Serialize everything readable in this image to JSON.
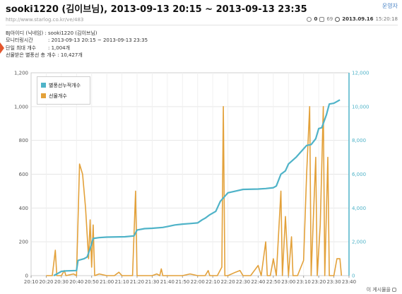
{
  "header": {
    "title": "sooki1220 (김이브님), 2013-09-13 20:15 ~ 2013-09-13 23:35",
    "top_link": "운영자",
    "url": "http://www.starlog.co.kr/ve/483",
    "comments": "0",
    "views": "69",
    "date": "2013.09.16",
    "time": "15:20:18"
  },
  "info": [
    {
      "key": "BJ아이디 (닉네임)",
      "value": ": sooki1220 (김이브님)"
    },
    {
      "key": "모니터링시간",
      "value": ": 2013-09-13 20:15 ~ 2013-09-13 23:35"
    },
    {
      "key": "단일 최대 개수",
      "value": ": 1,004개"
    },
    {
      "key": "선물받은 별풍선 총 개수",
      "value": ": 10,427개"
    }
  ],
  "footer": {
    "link": "이 게시물을"
  },
  "chart_data": {
    "type": "line",
    "title": "",
    "xlabel": "",
    "ylabel": "",
    "x_ticks": [
      "20:10",
      "20:20",
      "20:30",
      "20:40",
      "20:50",
      "21:00",
      "21:10",
      "21:20",
      "21:30",
      "21:40",
      "21:50",
      "22:00",
      "22:10",
      "22:20",
      "22:30",
      "22:40",
      "22:50",
      "23:00",
      "23:10",
      "23:20",
      "23:30",
      "23:40"
    ],
    "y_left": {
      "min": 0,
      "max": 1200,
      "ticks": [
        "0",
        "200",
        "400",
        "600",
        "800",
        "1,000",
        "1,200"
      ]
    },
    "y_right": {
      "min": 0,
      "max": 12000,
      "ticks": [
        "0",
        "2,000",
        "4,000",
        "6,000",
        "8,000",
        "10,000",
        "12,000"
      ]
    },
    "grid": true,
    "legend_position": "top-left",
    "series": [
      {
        "name": "별풍선누적개수",
        "axis": "right",
        "color": "#4fb3c8",
        "points": [
          [
            "20:25",
            0
          ],
          [
            "20:28",
            150
          ],
          [
            "20:30",
            250
          ],
          [
            "20:33",
            280
          ],
          [
            "20:40",
            300
          ],
          [
            "20:41",
            900
          ],
          [
            "20:45",
            1000
          ],
          [
            "20:47",
            1100
          ],
          [
            "20:49",
            1600
          ],
          [
            "20:51",
            2200
          ],
          [
            "20:55",
            2250
          ],
          [
            "21:00",
            2280
          ],
          [
            "21:12",
            2300
          ],
          [
            "21:18",
            2350
          ],
          [
            "21:20",
            2700
          ],
          [
            "21:25",
            2780
          ],
          [
            "21:30",
            2800
          ],
          [
            "21:37",
            2850
          ],
          [
            "21:40",
            2900
          ],
          [
            "21:45",
            3000
          ],
          [
            "21:50",
            3050
          ],
          [
            "21:55",
            3080
          ],
          [
            "22:00",
            3120
          ],
          [
            "22:03",
            3300
          ],
          [
            "22:05",
            3400
          ],
          [
            "22:08",
            3600
          ],
          [
            "22:12",
            3800
          ],
          [
            "22:15",
            4400
          ],
          [
            "22:20",
            4900
          ],
          [
            "22:25",
            5000
          ],
          [
            "22:30",
            5100
          ],
          [
            "22:40",
            5120
          ],
          [
            "22:45",
            5150
          ],
          [
            "22:50",
            5200
          ],
          [
            "22:52",
            5300
          ],
          [
            "22:55",
            6000
          ],
          [
            "22:58",
            6200
          ],
          [
            "23:00",
            6600
          ],
          [
            "23:05",
            7000
          ],
          [
            "23:08",
            7300
          ],
          [
            "23:10",
            7500
          ],
          [
            "23:12",
            7700
          ],
          [
            "23:15",
            7750
          ],
          [
            "23:18",
            8100
          ],
          [
            "23:20",
            8700
          ],
          [
            "23:22",
            8750
          ],
          [
            "23:25",
            9500
          ],
          [
            "23:27",
            10150
          ],
          [
            "23:30",
            10200
          ],
          [
            "23:32",
            10300
          ],
          [
            "23:34",
            10400
          ]
        ]
      },
      {
        "name": "선물개수",
        "axis": "left",
        "color": "#e3a13a",
        "points": [
          [
            "20:20",
            0
          ],
          [
            "20:24",
            0
          ],
          [
            "20:26",
            150
          ],
          [
            "20:27",
            0
          ],
          [
            "20:30",
            0
          ],
          [
            "20:32",
            30
          ],
          [
            "20:33",
            0
          ],
          [
            "20:38",
            10
          ],
          [
            "20:40",
            0
          ],
          [
            "20:42",
            660
          ],
          [
            "20:44",
            600
          ],
          [
            "20:46",
            400
          ],
          [
            "20:48",
            100
          ],
          [
            "20:49",
            330
          ],
          [
            "20:50",
            50
          ],
          [
            "20:51",
            300
          ],
          [
            "20:52",
            0
          ],
          [
            "20:55",
            10
          ],
          [
            "21:00",
            0
          ],
          [
            "21:05",
            0
          ],
          [
            "21:08",
            20
          ],
          [
            "21:10",
            0
          ],
          [
            "21:12",
            0
          ],
          [
            "21:15",
            0
          ],
          [
            "21:17",
            0
          ],
          [
            "21:19",
            500
          ],
          [
            "21:20",
            0
          ],
          [
            "21:25",
            0
          ],
          [
            "21:30",
            0
          ],
          [
            "21:33",
            10
          ],
          [
            "21:35",
            0
          ],
          [
            "21:36",
            40
          ],
          [
            "21:37",
            0
          ],
          [
            "21:40",
            0
          ],
          [
            "21:45",
            0
          ],
          [
            "21:50",
            0
          ],
          [
            "21:55",
            10
          ],
          [
            "22:00",
            0
          ],
          [
            "22:03",
            0
          ],
          [
            "22:05",
            0
          ],
          [
            "22:07",
            30
          ],
          [
            "22:08",
            0
          ],
          [
            "22:10",
            0
          ],
          [
            "22:13",
            0
          ],
          [
            "22:16",
            50
          ],
          [
            "22:17",
            1000
          ],
          [
            "22:18",
            0
          ],
          [
            "22:20",
            0
          ],
          [
            "22:25",
            20
          ],
          [
            "22:28",
            30
          ],
          [
            "22:30",
            0
          ],
          [
            "22:35",
            0
          ],
          [
            "22:40",
            60
          ],
          [
            "22:42",
            0
          ],
          [
            "22:45",
            200
          ],
          [
            "22:46",
            0
          ],
          [
            "22:48",
            0
          ],
          [
            "22:50",
            100
          ],
          [
            "22:52",
            0
          ],
          [
            "22:55",
            500
          ],
          [
            "22:56",
            0
          ],
          [
            "22:58",
            350
          ],
          [
            "23:00",
            0
          ],
          [
            "23:02",
            230
          ],
          [
            "23:03",
            0
          ],
          [
            "23:06",
            0
          ],
          [
            "23:10",
            90
          ],
          [
            "23:12",
            600
          ],
          [
            "23:14",
            1000
          ],
          [
            "23:15",
            0
          ],
          [
            "23:18",
            700
          ],
          [
            "23:19",
            0
          ],
          [
            "23:21",
            300
          ],
          [
            "23:23",
            1000
          ],
          [
            "23:24",
            0
          ],
          [
            "23:26",
            700
          ],
          [
            "23:27",
            0
          ],
          [
            "23:28",
            0
          ],
          [
            "23:30",
            0
          ],
          [
            "23:32",
            100
          ],
          [
            "23:34",
            100
          ],
          [
            "23:35",
            0
          ]
        ]
      }
    ]
  }
}
